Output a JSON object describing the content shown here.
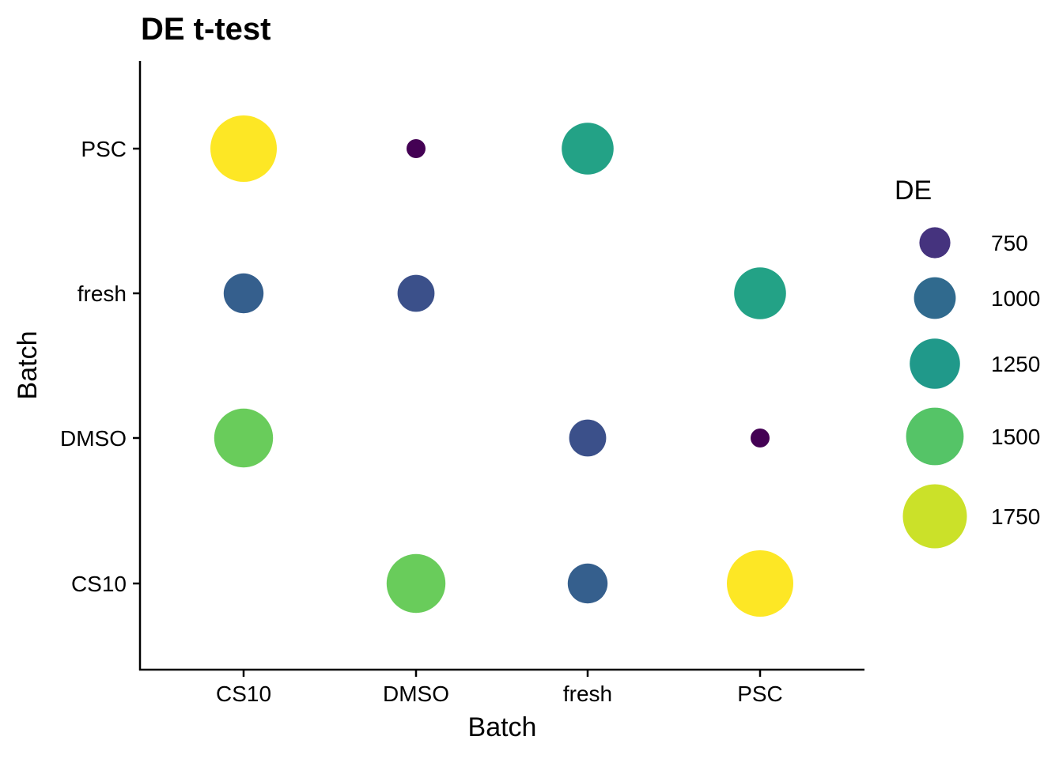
{
  "chart_data": {
    "type": "scatter",
    "title": "DE t-test",
    "xlabel": "Batch",
    "ylabel": "Batch",
    "x_categories": [
      "CS10",
      "DMSO",
      "fresh",
      "PSC"
    ],
    "y_categories": [
      "CS10",
      "DMSO",
      "fresh",
      "PSC"
    ],
    "points": [
      {
        "x": "CS10",
        "y": "PSC",
        "DE": 1850
      },
      {
        "x": "DMSO",
        "y": "PSC",
        "DE": 560
      },
      {
        "x": "fresh",
        "y": "PSC",
        "DE": 1300
      },
      {
        "x": "CS10",
        "y": "fresh",
        "DE": 950
      },
      {
        "x": "DMSO",
        "y": "fresh",
        "DE": 880
      },
      {
        "x": "PSC",
        "y": "fresh",
        "DE": 1300
      },
      {
        "x": "CS10",
        "y": "DMSO",
        "DE": 1550
      },
      {
        "x": "fresh",
        "y": "DMSO",
        "DE": 880
      },
      {
        "x": "PSC",
        "y": "DMSO",
        "DE": 560
      },
      {
        "x": "DMSO",
        "y": "CS10",
        "DE": 1550
      },
      {
        "x": "fresh",
        "y": "CS10",
        "DE": 950
      },
      {
        "x": "PSC",
        "y": "CS10",
        "DE": 1850
      }
    ],
    "size_color_legend": {
      "title": "DE",
      "values": [
        750,
        1000,
        1250,
        1500,
        1750
      ],
      "labels": [
        "750",
        "1000",
        "1250",
        "1500",
        "1750"
      ]
    },
    "color_scale": "viridis",
    "de_range": [
      560,
      1850
    ],
    "grid": false,
    "legend_position": "right"
  }
}
